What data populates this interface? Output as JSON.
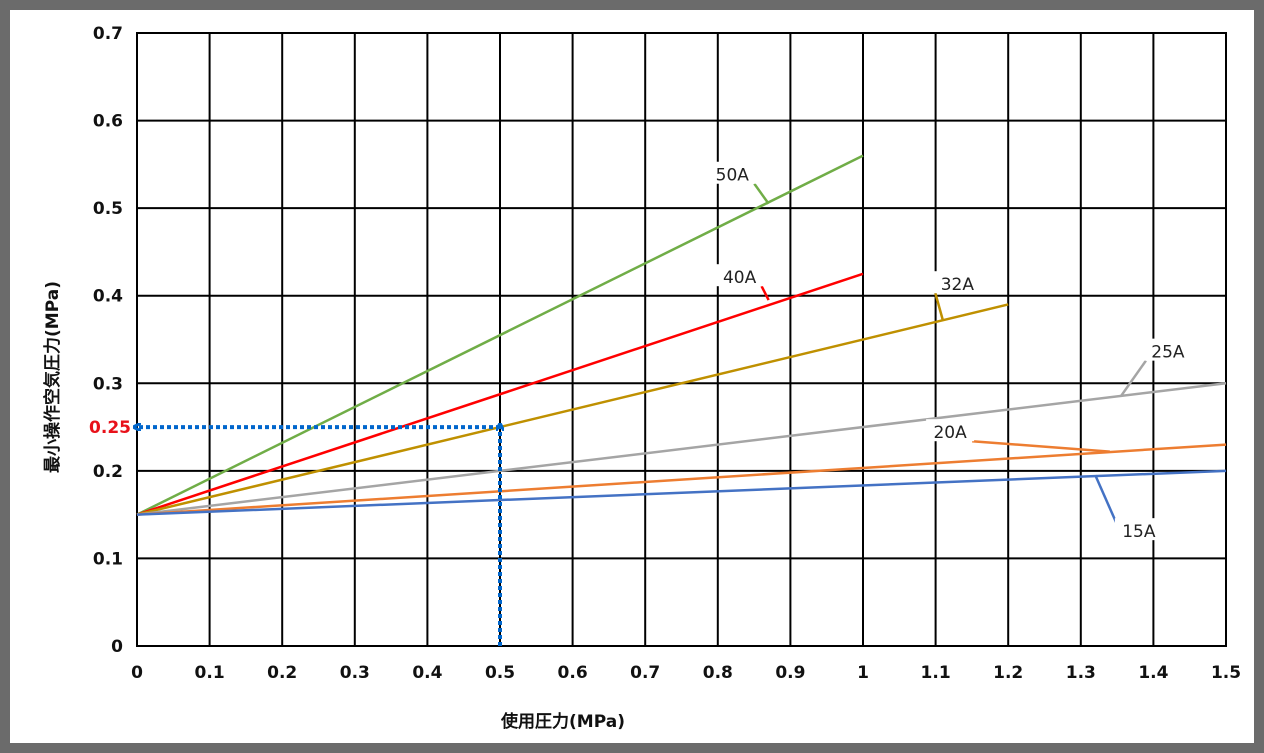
{
  "chart_data": {
    "type": "line",
    "xlabel": "使用圧力(MPa)",
    "ylabel": "最小操作空気圧力(MPa)",
    "xlim": [
      0,
      1.5
    ],
    "ylim": [
      0,
      0.7
    ],
    "x_ticks": [
      "0",
      "0.1",
      "0.2",
      "0.3",
      "0.4",
      "0.5",
      "0.6",
      "0.7",
      "0.8",
      "0.9",
      "1",
      "1.1",
      "1.2",
      "1.3",
      "1.4",
      "1.5"
    ],
    "y_ticks": [
      "0",
      "0.1",
      "0.2",
      "0.3",
      "0.4",
      "0.5",
      "0.6",
      "0.7"
    ],
    "grid": true,
    "series": [
      {
        "name": "50A",
        "color": "#70ad47",
        "points": [
          [
            0,
            0.15
          ],
          [
            1.0,
            0.56
          ]
        ],
        "label_at": [
          0.82,
          0.537
        ],
        "leader_to": [
          0.87,
          0.505
        ]
      },
      {
        "name": "40A",
        "color": "#ff0000",
        "points": [
          [
            0,
            0.15
          ],
          [
            1.0,
            0.425
          ]
        ],
        "label_at": [
          0.83,
          0.42
        ],
        "leader_to": [
          0.87,
          0.395
        ]
      },
      {
        "name": "32A",
        "color": "#bf9000",
        "points": [
          [
            0,
            0.15
          ],
          [
            1.2,
            0.39
          ]
        ],
        "label_at": [
          1.13,
          0.412
        ],
        "leader_to": [
          1.11,
          0.372
        ]
      },
      {
        "name": "25A",
        "color": "#a5a5a5",
        "points": [
          [
            0,
            0.15
          ],
          [
            1.5,
            0.3
          ]
        ],
        "label_at": [
          1.42,
          0.335
        ],
        "leader_to": [
          1.355,
          0.285
        ]
      },
      {
        "name": "20A",
        "color": "#ed7d31",
        "points": [
          [
            0,
            0.15
          ],
          [
            1.5,
            0.23
          ]
        ],
        "label_at": [
          1.12,
          0.243
        ],
        "leader_to": [
          1.34,
          0.222
        ]
      },
      {
        "name": "15A",
        "color": "#4472c4",
        "points": [
          [
            0,
            0.15
          ],
          [
            1.5,
            0.2
          ]
        ],
        "label_at": [
          1.38,
          0.13
        ],
        "leader_to": [
          1.32,
          0.195
        ]
      }
    ],
    "annotations": [
      {
        "type": "dotted-arrow",
        "color": "#0066cc",
        "from": [
          0.5,
          0.0
        ],
        "to": [
          0.5,
          0.25
        ]
      },
      {
        "type": "dotted-arrow",
        "color": "#0066cc",
        "from": [
          0.5,
          0.25
        ],
        "to": [
          0.0,
          0.25
        ]
      },
      {
        "type": "value-label",
        "text": "0.25",
        "color": "#e8111a",
        "at_y": 0.25
      }
    ]
  }
}
